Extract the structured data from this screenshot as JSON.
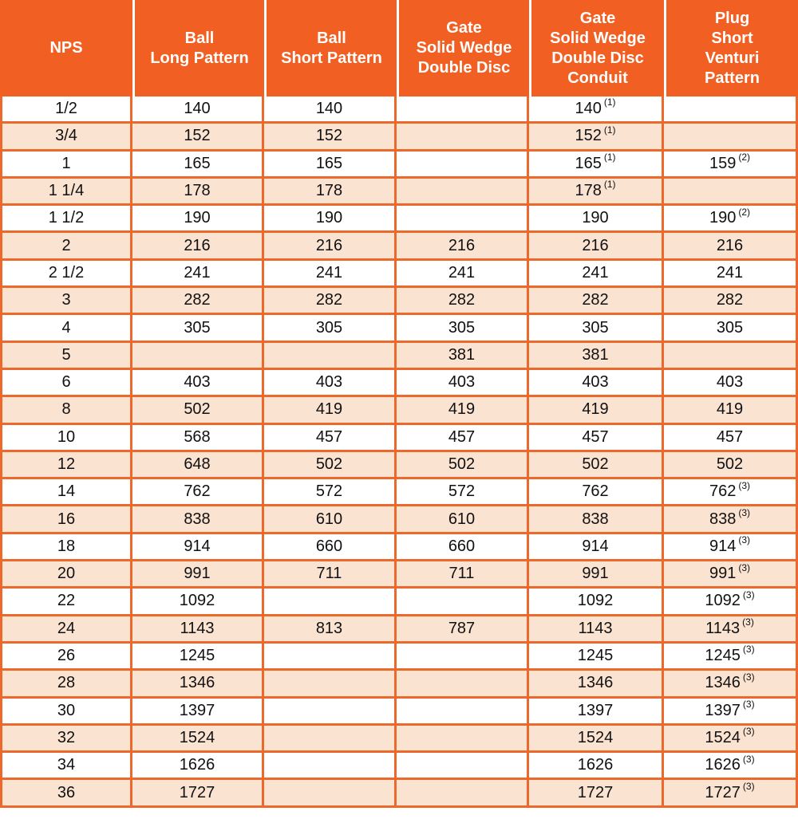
{
  "chart_data": {
    "type": "table",
    "columns": [
      {
        "id": "nps",
        "lines": [
          "NPS"
        ]
      },
      {
        "id": "ball-long-pattern",
        "lines": [
          "Ball",
          "Long Pattern"
        ]
      },
      {
        "id": "ball-short-pattern",
        "lines": [
          "Ball",
          "Short Pattern"
        ]
      },
      {
        "id": "gate-solid-wedge-double-disc",
        "lines": [
          "Gate",
          "Solid Wedge",
          "Double Disc"
        ]
      },
      {
        "id": "gate-solid-wedge-double-disc-conduit",
        "lines": [
          "Gate",
          "Solid Wedge",
          "Double Disc",
          "Conduit"
        ]
      },
      {
        "id": "plug-short-venturi-pattern",
        "lines": [
          "Plug",
          "Short",
          "Venturi",
          "Pattern"
        ]
      }
    ],
    "rows": [
      [
        {
          "v": "1/2"
        },
        {
          "v": "140"
        },
        {
          "v": "140"
        },
        {
          "v": ""
        },
        {
          "v": "140",
          "sup": "(1)"
        },
        {
          "v": ""
        }
      ],
      [
        {
          "v": "3/4"
        },
        {
          "v": "152"
        },
        {
          "v": "152"
        },
        {
          "v": ""
        },
        {
          "v": "152",
          "sup": "(1)"
        },
        {
          "v": ""
        }
      ],
      [
        {
          "v": "1"
        },
        {
          "v": "165"
        },
        {
          "v": "165"
        },
        {
          "v": ""
        },
        {
          "v": "165",
          "sup": "(1)"
        },
        {
          "v": "159",
          "sup": "(2)"
        }
      ],
      [
        {
          "v": "1 1/4"
        },
        {
          "v": "178"
        },
        {
          "v": "178"
        },
        {
          "v": ""
        },
        {
          "v": "178",
          "sup": "(1)"
        },
        {
          "v": ""
        }
      ],
      [
        {
          "v": "1 1/2"
        },
        {
          "v": "190"
        },
        {
          "v": "190"
        },
        {
          "v": ""
        },
        {
          "v": "190"
        },
        {
          "v": "190",
          "sup": "(2)"
        }
      ],
      [
        {
          "v": "2"
        },
        {
          "v": "216"
        },
        {
          "v": "216"
        },
        {
          "v": "216"
        },
        {
          "v": "216"
        },
        {
          "v": "216"
        }
      ],
      [
        {
          "v": "2 1/2"
        },
        {
          "v": "241"
        },
        {
          "v": "241"
        },
        {
          "v": "241"
        },
        {
          "v": "241"
        },
        {
          "v": "241"
        }
      ],
      [
        {
          "v": "3"
        },
        {
          "v": "282"
        },
        {
          "v": "282"
        },
        {
          "v": "282"
        },
        {
          "v": "282"
        },
        {
          "v": "282"
        }
      ],
      [
        {
          "v": "4"
        },
        {
          "v": "305"
        },
        {
          "v": "305"
        },
        {
          "v": "305"
        },
        {
          "v": "305"
        },
        {
          "v": "305"
        }
      ],
      [
        {
          "v": "5"
        },
        {
          "v": ""
        },
        {
          "v": ""
        },
        {
          "v": "381"
        },
        {
          "v": "381"
        },
        {
          "v": ""
        }
      ],
      [
        {
          "v": "6"
        },
        {
          "v": "403"
        },
        {
          "v": "403"
        },
        {
          "v": "403"
        },
        {
          "v": "403"
        },
        {
          "v": "403"
        }
      ],
      [
        {
          "v": "8"
        },
        {
          "v": "502"
        },
        {
          "v": "419"
        },
        {
          "v": "419"
        },
        {
          "v": "419"
        },
        {
          "v": "419"
        }
      ],
      [
        {
          "v": "10"
        },
        {
          "v": "568"
        },
        {
          "v": "457"
        },
        {
          "v": "457"
        },
        {
          "v": "457"
        },
        {
          "v": "457"
        }
      ],
      [
        {
          "v": "12"
        },
        {
          "v": "648"
        },
        {
          "v": "502"
        },
        {
          "v": "502"
        },
        {
          "v": "502"
        },
        {
          "v": "502"
        }
      ],
      [
        {
          "v": "14"
        },
        {
          "v": "762"
        },
        {
          "v": "572"
        },
        {
          "v": "572"
        },
        {
          "v": "762"
        },
        {
          "v": "762",
          "sup": "(3)"
        }
      ],
      [
        {
          "v": "16"
        },
        {
          "v": "838"
        },
        {
          "v": "610"
        },
        {
          "v": "610"
        },
        {
          "v": "838"
        },
        {
          "v": "838",
          "sup": "(3)"
        }
      ],
      [
        {
          "v": "18"
        },
        {
          "v": "914"
        },
        {
          "v": "660"
        },
        {
          "v": "660"
        },
        {
          "v": "914"
        },
        {
          "v": "914",
          "sup": "(3)"
        }
      ],
      [
        {
          "v": "20"
        },
        {
          "v": "991"
        },
        {
          "v": "711"
        },
        {
          "v": "711"
        },
        {
          "v": "991"
        },
        {
          "v": "991",
          "sup": "(3)"
        }
      ],
      [
        {
          "v": "22"
        },
        {
          "v": "1092"
        },
        {
          "v": ""
        },
        {
          "v": ""
        },
        {
          "v": "1092"
        },
        {
          "v": "1092",
          "sup": "(3)"
        }
      ],
      [
        {
          "v": "24"
        },
        {
          "v": "1143"
        },
        {
          "v": "813"
        },
        {
          "v": "787"
        },
        {
          "v": "1143"
        },
        {
          "v": "1143",
          "sup": "(3)"
        }
      ],
      [
        {
          "v": "26"
        },
        {
          "v": "1245"
        },
        {
          "v": ""
        },
        {
          "v": ""
        },
        {
          "v": "1245"
        },
        {
          "v": "1245",
          "sup": "(3)"
        }
      ],
      [
        {
          "v": "28"
        },
        {
          "v": "1346"
        },
        {
          "v": ""
        },
        {
          "v": ""
        },
        {
          "v": "1346"
        },
        {
          "v": "1346",
          "sup": "(3)"
        }
      ],
      [
        {
          "v": "30"
        },
        {
          "v": "1397"
        },
        {
          "v": ""
        },
        {
          "v": ""
        },
        {
          "v": "1397"
        },
        {
          "v": "1397",
          "sup": "(3)"
        }
      ],
      [
        {
          "v": "32"
        },
        {
          "v": "1524"
        },
        {
          "v": ""
        },
        {
          "v": ""
        },
        {
          "v": "1524"
        },
        {
          "v": "1524",
          "sup": "(3)"
        }
      ],
      [
        {
          "v": "34"
        },
        {
          "v": "1626"
        },
        {
          "v": ""
        },
        {
          "v": ""
        },
        {
          "v": "1626"
        },
        {
          "v": "1626",
          "sup": "(3)"
        }
      ],
      [
        {
          "v": "36"
        },
        {
          "v": "1727"
        },
        {
          "v": ""
        },
        {
          "v": ""
        },
        {
          "v": "1727"
        },
        {
          "v": "1727",
          "sup": "(3)"
        }
      ]
    ]
  },
  "style": {
    "header_bg": "#F15F22",
    "header_text": "#FFFFFF",
    "grid_border": "#EC682B",
    "row_bg": "#FFFFFF",
    "row_alt_bg": "#FBE3D2",
    "cell_text": "#111111"
  }
}
